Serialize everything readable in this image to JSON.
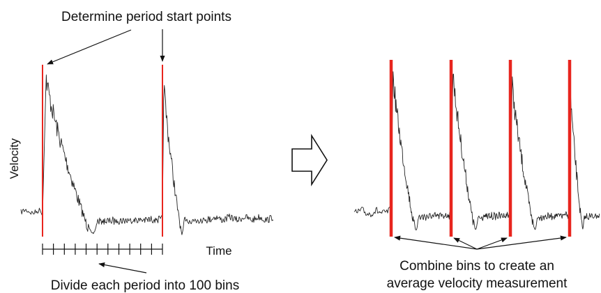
{
  "labels": {
    "title_top": "Determine period start points",
    "y_axis": "Velocity",
    "x_axis": "Time",
    "bottom_left": "Divide each period into 100 bins",
    "bottom_right_line1": "Combine bins to create an",
    "bottom_right_line2": "average velocity measurement"
  },
  "colors": {
    "marker": "#e8251e",
    "signal": "#222222",
    "arrow": "#111111"
  },
  "icons": {
    "transition": "hollow-right-arrow-icon"
  }
}
